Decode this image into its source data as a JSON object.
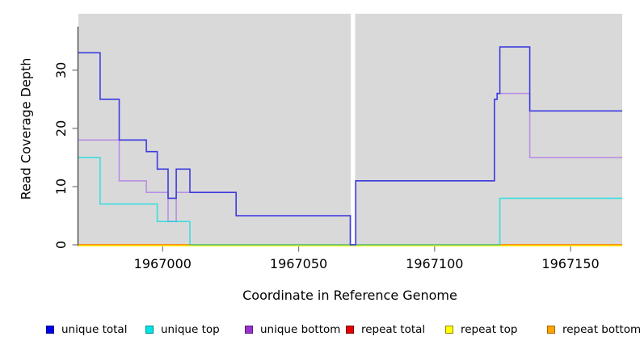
{
  "chart_data": {
    "type": "line",
    "subtype": "step",
    "title": "",
    "xlabel": "Coordinate in Reference Genome",
    "ylabel": "Read Coverage Depth",
    "xlim": [
      1966969,
      1967169
    ],
    "ylim": [
      0,
      39.7
    ],
    "xticks": [
      1967000,
      1967050,
      1967100,
      1967150
    ],
    "yticks": [
      0,
      10,
      20,
      30
    ],
    "gap_x": [
      1967069.2,
      1967070.8
    ],
    "panel_bg": "#d9d9d9",
    "axis_line_color": "#404040",
    "tick_color": "#808080",
    "step_x": [
      1966969,
      1966977,
      1966984,
      1966994,
      1966998,
      1967002,
      1967005,
      1967010,
      1967027,
      1967069,
      1967071,
      1967122,
      1967123,
      1967124,
      1967135,
      1967169
    ],
    "series": [
      {
        "name": "repeat total",
        "color": "#e60000",
        "values": [
          0,
          0,
          0,
          0,
          0,
          0,
          0,
          0,
          0,
          0,
          0,
          0,
          0,
          0,
          0
        ]
      },
      {
        "name": "repeat top",
        "color": "#ffff00",
        "values": [
          0,
          0,
          0,
          0,
          0,
          0,
          0,
          0,
          0,
          0,
          0,
          0,
          0,
          0,
          0
        ]
      },
      {
        "name": "repeat bottom",
        "color": "#ff9e00",
        "values": [
          0,
          0,
          0,
          0,
          0,
          0,
          0,
          0,
          0,
          0,
          0,
          0,
          0,
          0,
          0
        ]
      },
      {
        "name": "unique bottom",
        "color": "#b78fe3",
        "values": [
          18,
          18,
          11,
          9,
          9,
          4,
          9,
          9,
          5,
          0,
          11,
          25,
          26,
          26,
          15
        ]
      },
      {
        "name": "unique top",
        "color": "rgba(0,222,222,0.72)",
        "values": [
          15,
          7,
          7,
          7,
          4,
          4,
          4,
          0,
          0,
          0,
          0,
          0,
          0,
          8,
          8
        ]
      },
      {
        "name": "unique total",
        "color": "#3c3ce0",
        "values": [
          33,
          25,
          18,
          16,
          13,
          8,
          13,
          9,
          5,
          0,
          11,
          25,
          26,
          34,
          23
        ]
      }
    ]
  },
  "legend": {
    "items": [
      {
        "label": "unique total",
        "fill": "#0000f0",
        "border": "#000080"
      },
      {
        "label": "unique top",
        "fill": "#00e5e5",
        "border": "#008b8b"
      },
      {
        "label": "unique bottom",
        "fill": "#9932cc",
        "border": "#58187a"
      },
      {
        "label": "repeat total",
        "fill": "#e60000",
        "border": "#7a0000"
      },
      {
        "label": "repeat top",
        "fill": "#ffff00",
        "border": "#8b8b00"
      },
      {
        "label": "repeat bottom",
        "fill": "#ffa500",
        "border": "#a66400"
      }
    ]
  }
}
